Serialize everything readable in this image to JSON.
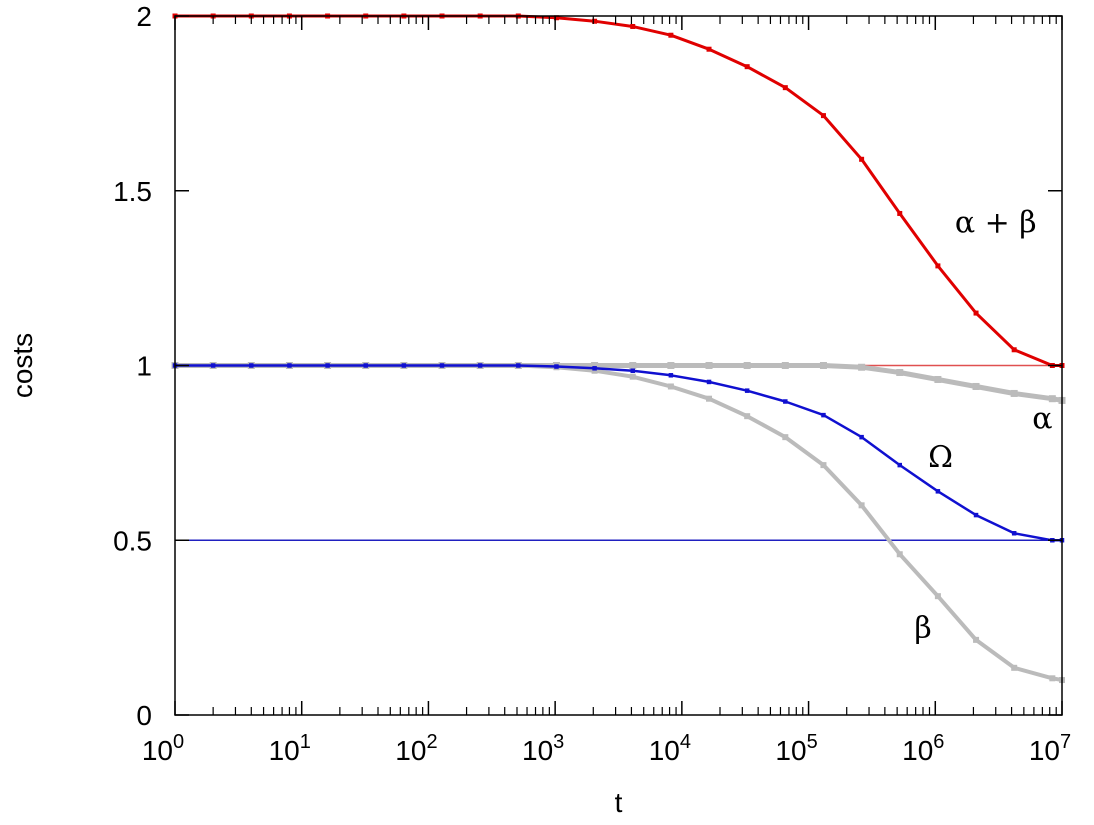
{
  "chart_data": {
    "type": "line",
    "title": "",
    "xlabel": "t",
    "ylabel": "costs",
    "xscale": "log",
    "xlim": [
      1,
      10000000
    ],
    "ylim": [
      0,
      2
    ],
    "grid": false,
    "legend": "none",
    "x_ticks": [
      {
        "value": 1,
        "base": "10",
        "exp": "0"
      },
      {
        "value": 10,
        "base": "10",
        "exp": "1"
      },
      {
        "value": 100,
        "base": "10",
        "exp": "2"
      },
      {
        "value": 1000,
        "base": "10",
        "exp": "3"
      },
      {
        "value": 10000,
        "base": "10",
        "exp": "4"
      },
      {
        "value": 100000,
        "base": "10",
        "exp": "5"
      },
      {
        "value": 1000000,
        "base": "10",
        "exp": "6"
      },
      {
        "value": 10000000,
        "base": "10",
        "exp": "7"
      }
    ],
    "y_ticks": [
      {
        "value": 0,
        "label": "0"
      },
      {
        "value": 0.5,
        "label": "0.5"
      },
      {
        "value": 1,
        "label": "1"
      },
      {
        "value": 1.5,
        "label": "1.5"
      },
      {
        "value": 2,
        "label": "2"
      }
    ],
    "reference_lines": [
      {
        "y": 1,
        "color": "#e05050"
      },
      {
        "y": 0.5,
        "color": "#2020c0"
      }
    ],
    "series": [
      {
        "name": "α + β",
        "color": "#e00000",
        "width": 3,
        "x": [
          1,
          2,
          4,
          8,
          16,
          32,
          64,
          128,
          256,
          512,
          1024,
          2048,
          4096,
          8192,
          16384,
          32768,
          65536,
          131072,
          262144,
          524288,
          1048576,
          2097152,
          4194304,
          8388608,
          10000000
        ],
        "y": [
          2.0,
          2.0,
          2.0,
          2.0,
          2.0,
          2.0,
          2.0,
          2.0,
          2.0,
          2.0,
          1.995,
          1.985,
          1.97,
          1.945,
          1.905,
          1.855,
          1.795,
          1.715,
          1.59,
          1.435,
          1.285,
          1.15,
          1.045,
          1.0,
          1.0
        ],
        "label_x": 3000000,
        "label_y": 1.38
      },
      {
        "name": "Ω",
        "color": "#1010d0",
        "width": 2.5,
        "x": [
          1,
          2,
          4,
          8,
          16,
          32,
          64,
          128,
          256,
          512,
          1024,
          2048,
          4096,
          8192,
          16384,
          32768,
          65536,
          131072,
          262144,
          524288,
          1048576,
          2097152,
          4194304,
          8388608,
          10000000
        ],
        "y": [
          1.0,
          1.0,
          1.0,
          1.0,
          1.0,
          1.0,
          1.0,
          1.0,
          1.0,
          1.0,
          0.997,
          0.992,
          0.985,
          0.972,
          0.953,
          0.928,
          0.897,
          0.858,
          0.795,
          0.715,
          0.64,
          0.572,
          0.52,
          0.5,
          0.5
        ],
        "label_x": 1100000,
        "label_y": 0.71
      },
      {
        "name": "α",
        "color": "#bbbbbb",
        "width": 5,
        "x": [
          1,
          2,
          4,
          8,
          16,
          32,
          64,
          128,
          256,
          512,
          1024,
          2048,
          4096,
          8192,
          16384,
          32768,
          65536,
          131072,
          262144,
          524288,
          1048576,
          2097152,
          4194304,
          8388608,
          10000000
        ],
        "y": [
          1.0,
          1.0,
          1.0,
          1.0,
          1.0,
          1.0,
          1.0,
          1.0,
          1.0,
          1.0,
          1.0,
          1.0,
          1.0,
          1.0,
          1.0,
          1.0,
          1.0,
          1.0,
          0.995,
          0.98,
          0.96,
          0.94,
          0.92,
          0.905,
          0.9
        ],
        "label_x": 7000000,
        "label_y": 0.82
      },
      {
        "name": "β",
        "color": "#bbbbbb",
        "width": 4,
        "x": [
          1,
          2,
          4,
          8,
          16,
          32,
          64,
          128,
          256,
          512,
          1024,
          2048,
          4096,
          8192,
          16384,
          32768,
          65536,
          131072,
          262144,
          524288,
          1048576,
          2097152,
          4194304,
          8388608,
          10000000
        ],
        "y": [
          1.0,
          1.0,
          1.0,
          1.0,
          1.0,
          1.0,
          1.0,
          1.0,
          1.0,
          1.0,
          0.995,
          0.985,
          0.968,
          0.94,
          0.905,
          0.855,
          0.795,
          0.715,
          0.6,
          0.46,
          0.34,
          0.215,
          0.135,
          0.105,
          0.1
        ],
        "label_x": 800000,
        "label_y": 0.22
      }
    ]
  }
}
